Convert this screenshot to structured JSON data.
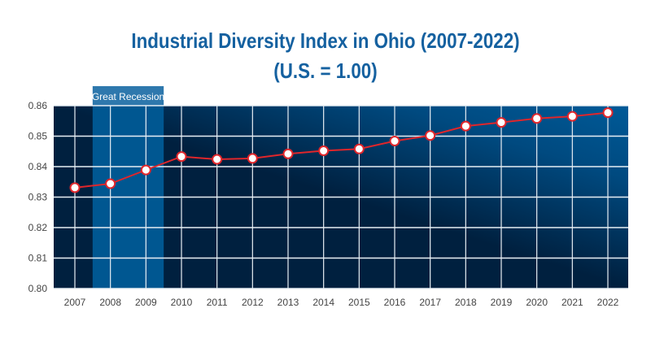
{
  "chart_data": {
    "type": "line",
    "title": "Industrial Diversity Index in Ohio (2007-2022)",
    "subtitle": "(U.S. = 1.00)",
    "xlabel": "",
    "ylabel": "",
    "x": [
      "2007",
      "2008",
      "2009",
      "2010",
      "2011",
      "2012",
      "2013",
      "2014",
      "2015",
      "2016",
      "2017",
      "2018",
      "2019",
      "2020",
      "2021",
      "2022"
    ],
    "values": [
      0.8331,
      0.8344,
      0.8389,
      0.8433,
      0.8424,
      0.8427,
      0.8442,
      0.8452,
      0.8458,
      0.8484,
      0.8502,
      0.8533,
      0.8545,
      0.8558,
      0.8565,
      0.8577
    ],
    "ylim": [
      0.8,
      0.86
    ],
    "yticks": [
      "0.80",
      "0.81",
      "0.82",
      "0.83",
      "0.84",
      "0.85",
      "0.86"
    ],
    "grid": true,
    "annotation": {
      "label": "Great Recession",
      "from_year": "2008",
      "to_year": "2009"
    },
    "colors": {
      "line": "#e0262b",
      "marker_fill": "#ffffff",
      "title": "#1561a0",
      "band": "#005791",
      "band_label_bg": "#2e78ad",
      "bg_dark": "#00203f",
      "bg_light": "#005a98"
    }
  }
}
